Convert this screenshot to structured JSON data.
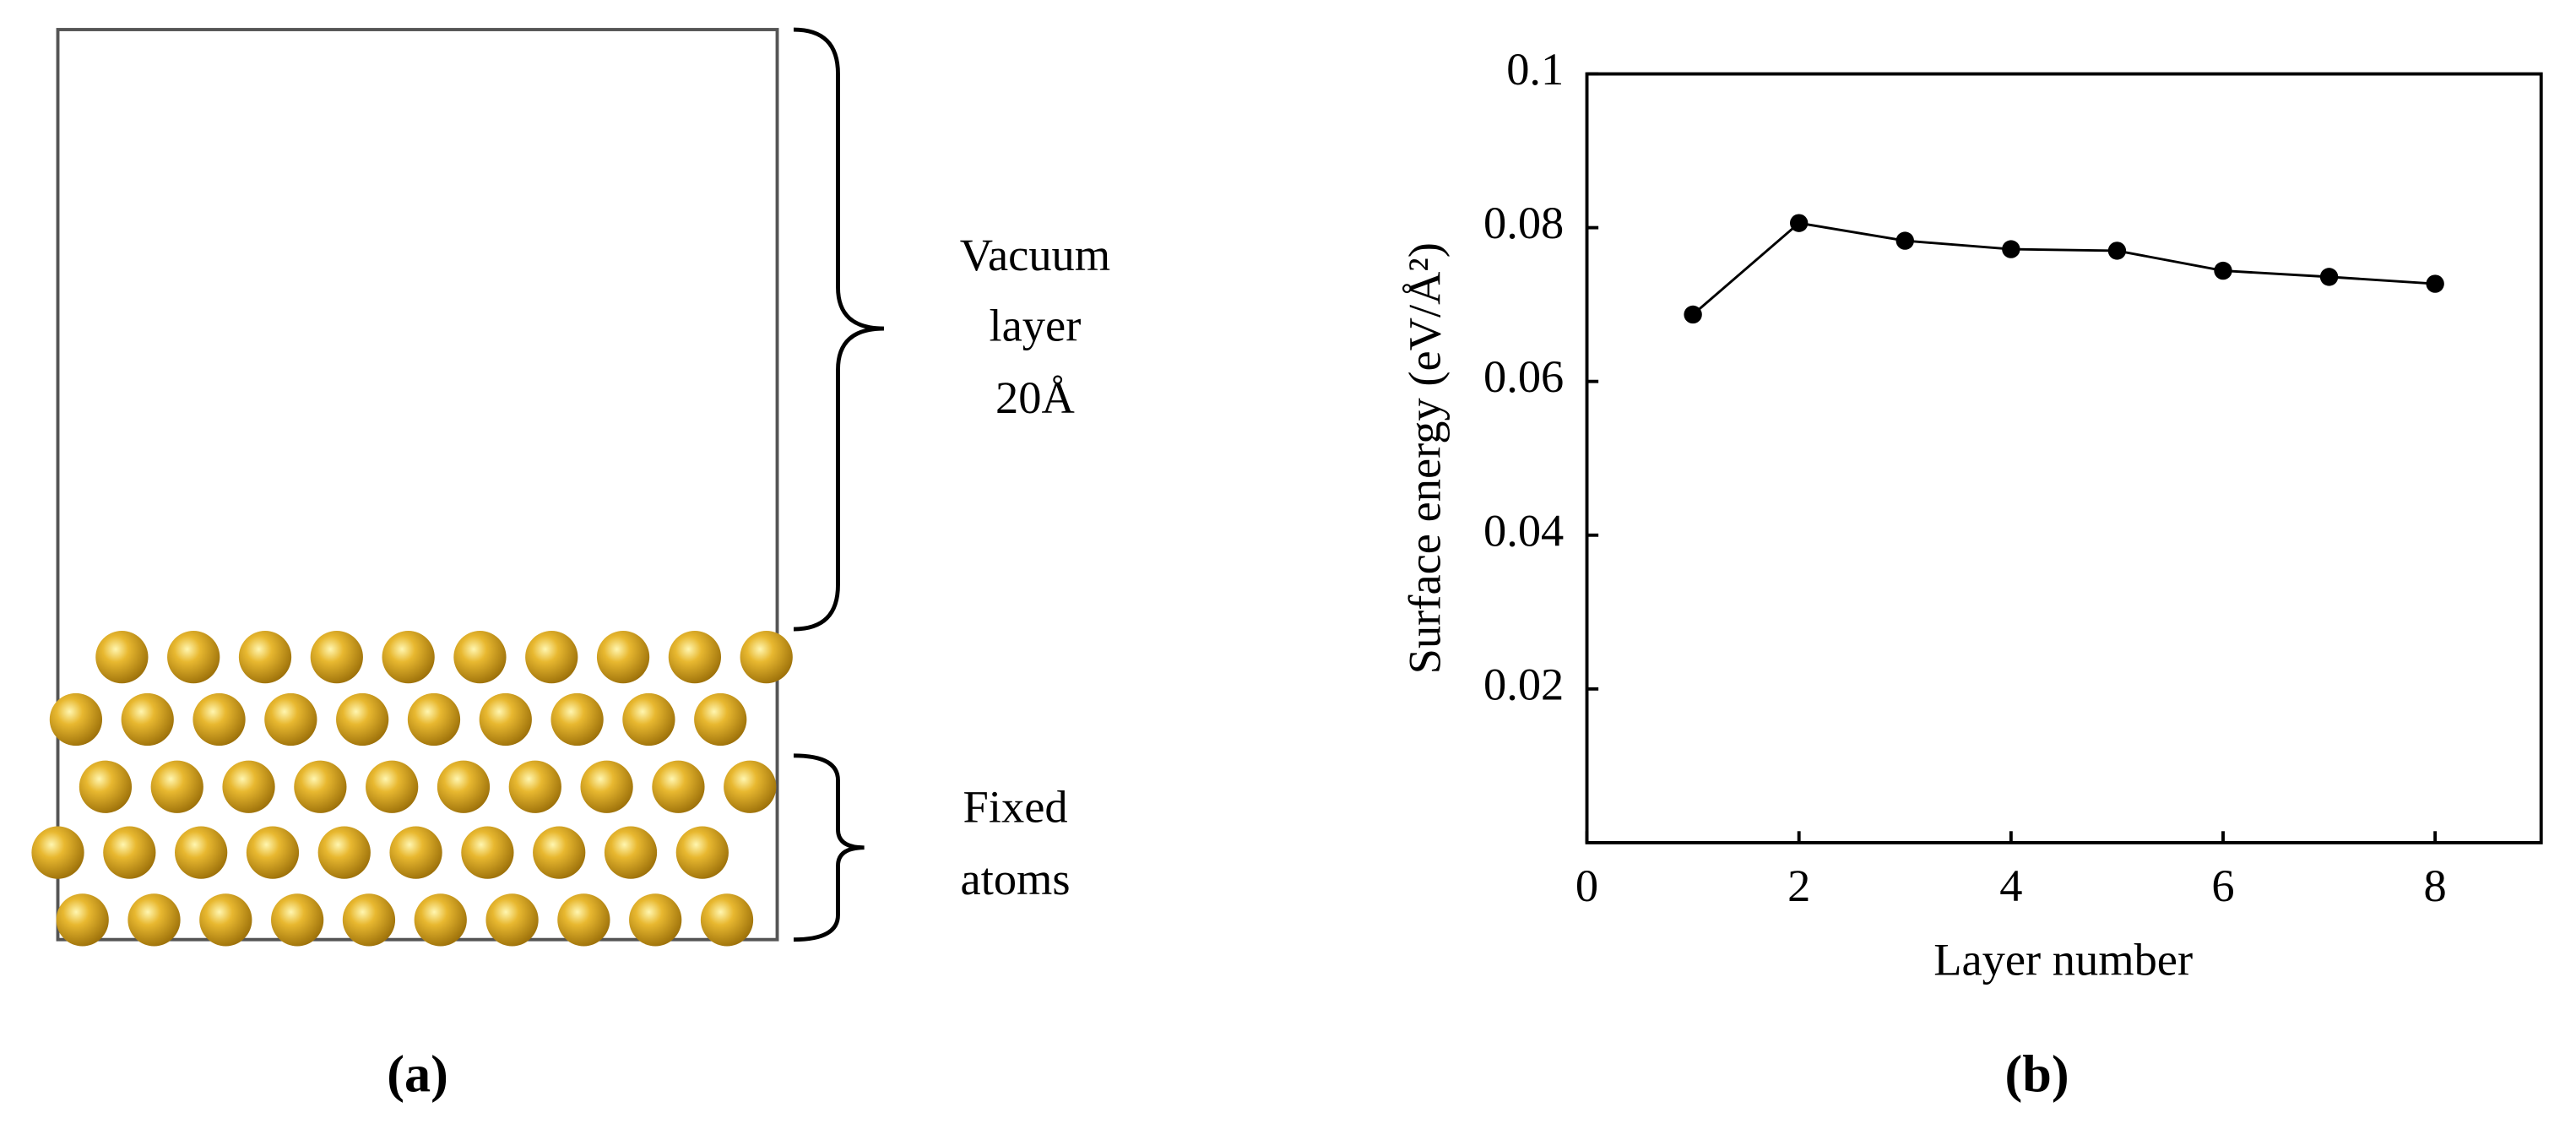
{
  "diagram": {
    "vacuum_label": [
      "Vacuum",
      "layer",
      "20Å"
    ],
    "fixed_label": [
      "Fixed",
      "atoms"
    ],
    "caption": "(a)"
  },
  "chart_data": {
    "type": "line",
    "caption": "(b)",
    "x_label": "Layer number",
    "y_label": "Surface energy (eV/Å²)",
    "x": [
      1,
      2,
      3,
      4,
      5,
      6,
      7,
      8
    ],
    "series": [
      {
        "name": null,
        "color": "#000000",
        "values": [
          0.0687,
          0.0806,
          0.0783,
          0.0772,
          0.077,
          0.0744,
          0.0736,
          0.0727
        ]
      }
    ],
    "xlim": [
      0,
      9
    ],
    "xticks": [
      0,
      2,
      4,
      6,
      8
    ],
    "ylim": [
      0,
      0.1
    ],
    "yticks": [
      0.02,
      0.04,
      0.06,
      0.08,
      0.1
    ],
    "grid": false
  }
}
